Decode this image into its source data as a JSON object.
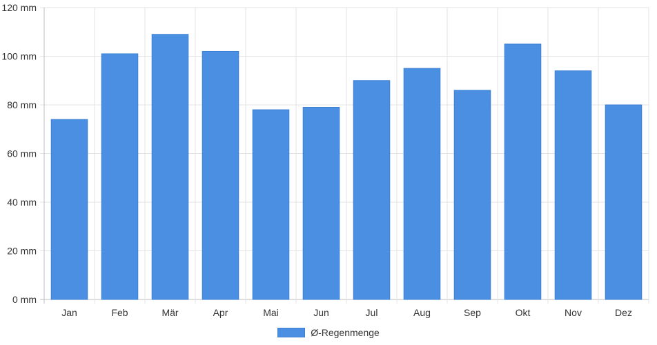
{
  "chart_data": {
    "type": "bar",
    "categories": [
      "Jan",
      "Feb",
      "Mär",
      "Apr",
      "Mai",
      "Jun",
      "Jul",
      "Aug",
      "Sep",
      "Okt",
      "Nov",
      "Dez"
    ],
    "series": [
      {
        "name": "Ø-Regenmenge",
        "values": [
          74,
          101,
          109,
          102,
          78,
          79,
          90,
          95,
          86,
          105,
          94,
          80
        ],
        "color": "#4a8fe2"
      }
    ],
    "y_ticks": [
      "0 mm",
      "20 mm",
      "40 mm",
      "60 mm",
      "80 mm",
      "100 mm",
      "120 mm"
    ],
    "ylim": [
      0,
      120
    ],
    "grid": true,
    "legend_position": "bottom"
  }
}
